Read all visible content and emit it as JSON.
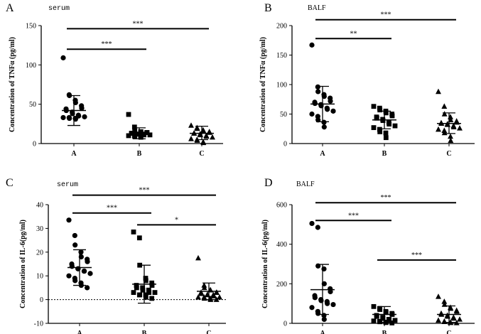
{
  "chart_data": [
    {
      "type": "scatter",
      "letter": "A",
      "title": "serum",
      "ylabel": "Concentration of TNFα (pg/ml)",
      "ylim": [
        0,
        150
      ],
      "yticks": [
        0,
        50,
        100,
        150
      ],
      "categories": [
        "A",
        "B",
        "C"
      ],
      "marker": [
        "circle",
        "square",
        "triangle"
      ],
      "series": [
        {
          "name": "A",
          "values": [
            109,
            62,
            61,
            55,
            52,
            48,
            45,
            44,
            42,
            40,
            38,
            36,
            35,
            34,
            33,
            33,
            32,
            32,
            31
          ],
          "mean": 42,
          "sd_low": 23,
          "sd_high": 61
        },
        {
          "name": "B",
          "values": [
            37,
            21,
            16,
            15,
            15,
            14,
            14,
            13,
            13,
            12,
            12,
            12,
            11,
            11,
            10,
            10,
            9,
            9,
            8
          ],
          "mean": 12,
          "sd_low": 6,
          "sd_high": 20
        },
        {
          "name": "C",
          "values": [
            23,
            20,
            19,
            17,
            16,
            15,
            14,
            13,
            13,
            12,
            11,
            10,
            9,
            8,
            6,
            5,
            4,
            2,
            1
          ],
          "mean": 13,
          "sd_low": 5,
          "sd_high": 22
        }
      ],
      "significance": [
        {
          "from": "A",
          "to": "B",
          "label": "***",
          "y": 120
        },
        {
          "from": "A",
          "to": "C",
          "label": "***",
          "y": 146
        }
      ]
    },
    {
      "type": "scatter",
      "letter": "B",
      "title": "BALF",
      "ylabel": "Concentration of TNFα (pg/ml)",
      "ylim": [
        0,
        200
      ],
      "yticks": [
        0,
        50,
        100,
        150,
        200
      ],
      "categories": [
        "A",
        "B",
        "C"
      ],
      "marker": [
        "circle",
        "square",
        "triangle"
      ],
      "series": [
        {
          "name": "A",
          "values": [
            167,
            96,
            88,
            83,
            80,
            77,
            72,
            70,
            68,
            66,
            64,
            60,
            58,
            55,
            50,
            46,
            40,
            36,
            28
          ],
          "mean": 67,
          "sd_low": 37,
          "sd_high": 97
        },
        {
          "name": "B",
          "values": [
            63,
            60,
            57,
            55,
            52,
            50,
            47,
            45,
            43,
            41,
            39,
            36,
            33,
            30,
            27,
            24,
            20,
            18,
            10
          ],
          "mean": 40,
          "sd_low": 25,
          "sd_high": 55
        },
        {
          "name": "C",
          "values": [
            88,
            63,
            50,
            45,
            40,
            38,
            36,
            35,
            34,
            33,
            32,
            30,
            28,
            26,
            24,
            22,
            18,
            12,
            5
          ],
          "mean": 34,
          "sd_low": 17,
          "sd_high": 52
        }
      ],
      "significance": [
        {
          "from": "A",
          "to": "B",
          "label": "**",
          "y": 178
        },
        {
          "from": "A",
          "to": "C",
          "label": "***",
          "y": 210
        }
      ]
    },
    {
      "type": "scatter",
      "letter": "C",
      "title": "serum",
      "ylabel": "Concentration of IL-6(pg/ml)",
      "ylim": [
        -10,
        40
      ],
      "yticks": [
        -10,
        0,
        10,
        20,
        30,
        40
      ],
      "zero_line": true,
      "categories": [
        "A",
        "B",
        "C"
      ],
      "marker": [
        "circle",
        "square",
        "triangle"
      ],
      "series": [
        {
          "name": "A",
          "values": [
            33.5,
            27,
            23,
            20,
            18,
            17,
            16,
            15,
            14,
            13,
            13,
            12,
            12,
            11,
            10,
            9,
            8,
            7,
            6,
            5
          ],
          "mean": 13.5,
          "sd_low": 6,
          "sd_high": 21
        },
        {
          "name": "B",
          "values": [
            28.5,
            26,
            14.5,
            9,
            8,
            7,
            6,
            6,
            5,
            5,
            4,
            4,
            3,
            3,
            3,
            2,
            2,
            2,
            1,
            0.5
          ],
          "mean": 6.5,
          "sd_low": -1.5,
          "sd_high": 14.5
        },
        {
          "name": "C",
          "values": [
            17.5,
            6,
            5,
            4,
            4,
            3,
            3,
            3,
            2.5,
            2,
            2,
            2,
            1.5,
            1,
            1,
            1,
            0.5,
            0.5,
            0,
            0
          ],
          "mean": 3.5,
          "sd_low": 0,
          "sd_high": 7
        }
      ],
      "significance": [
        {
          "from": "A",
          "to": "B",
          "label": "***",
          "y": 36.5
        },
        {
          "from": "B",
          "to": "C",
          "label": "*",
          "y": 31.5
        },
        {
          "from": "A",
          "to": "C",
          "label": "***",
          "y": 44
        }
      ]
    },
    {
      "type": "scatter",
      "letter": "D",
      "title": "BALF",
      "ylabel": "Concentration of IL-6(pg/ml)",
      "ylim": [
        0,
        600
      ],
      "yticks": [
        0,
        200,
        400,
        600
      ],
      "categories": [
        "A",
        "B",
        "C"
      ],
      "marker": [
        "circle",
        "square",
        "triangle"
      ],
      "series": [
        {
          "name": "A",
          "values": [
            505,
            485,
            290,
            275,
            200,
            175,
            160,
            140,
            130,
            120,
            115,
            110,
            100,
            95,
            80,
            60,
            50,
            40,
            20
          ],
          "mean": 170,
          "sd_low": 45,
          "sd_high": 298
        },
        {
          "name": "B",
          "values": [
            85,
            75,
            70,
            60,
            55,
            50,
            45,
            40,
            35,
            30,
            25,
            20,
            20,
            15,
            12,
            10,
            8,
            6,
            4,
            2
          ],
          "mean": 45,
          "sd_low": 5,
          "sd_high": 85
        },
        {
          "name": "C",
          "values": [
            135,
            110,
            95,
            80,
            75,
            65,
            60,
            50,
            45,
            40,
            35,
            30,
            25,
            20,
            15,
            10,
            8,
            5,
            3,
            2
          ],
          "mean": 45,
          "sd_low": 5,
          "sd_high": 88
        }
      ],
      "significance": [
        {
          "from": "A",
          "to": "B",
          "label": "***",
          "y": 520
        },
        {
          "from": "B",
          "to": "C",
          "label": "***",
          "y": 320
        },
        {
          "from": "A",
          "to": "C",
          "label": "***",
          "y": 610
        }
      ]
    }
  ]
}
